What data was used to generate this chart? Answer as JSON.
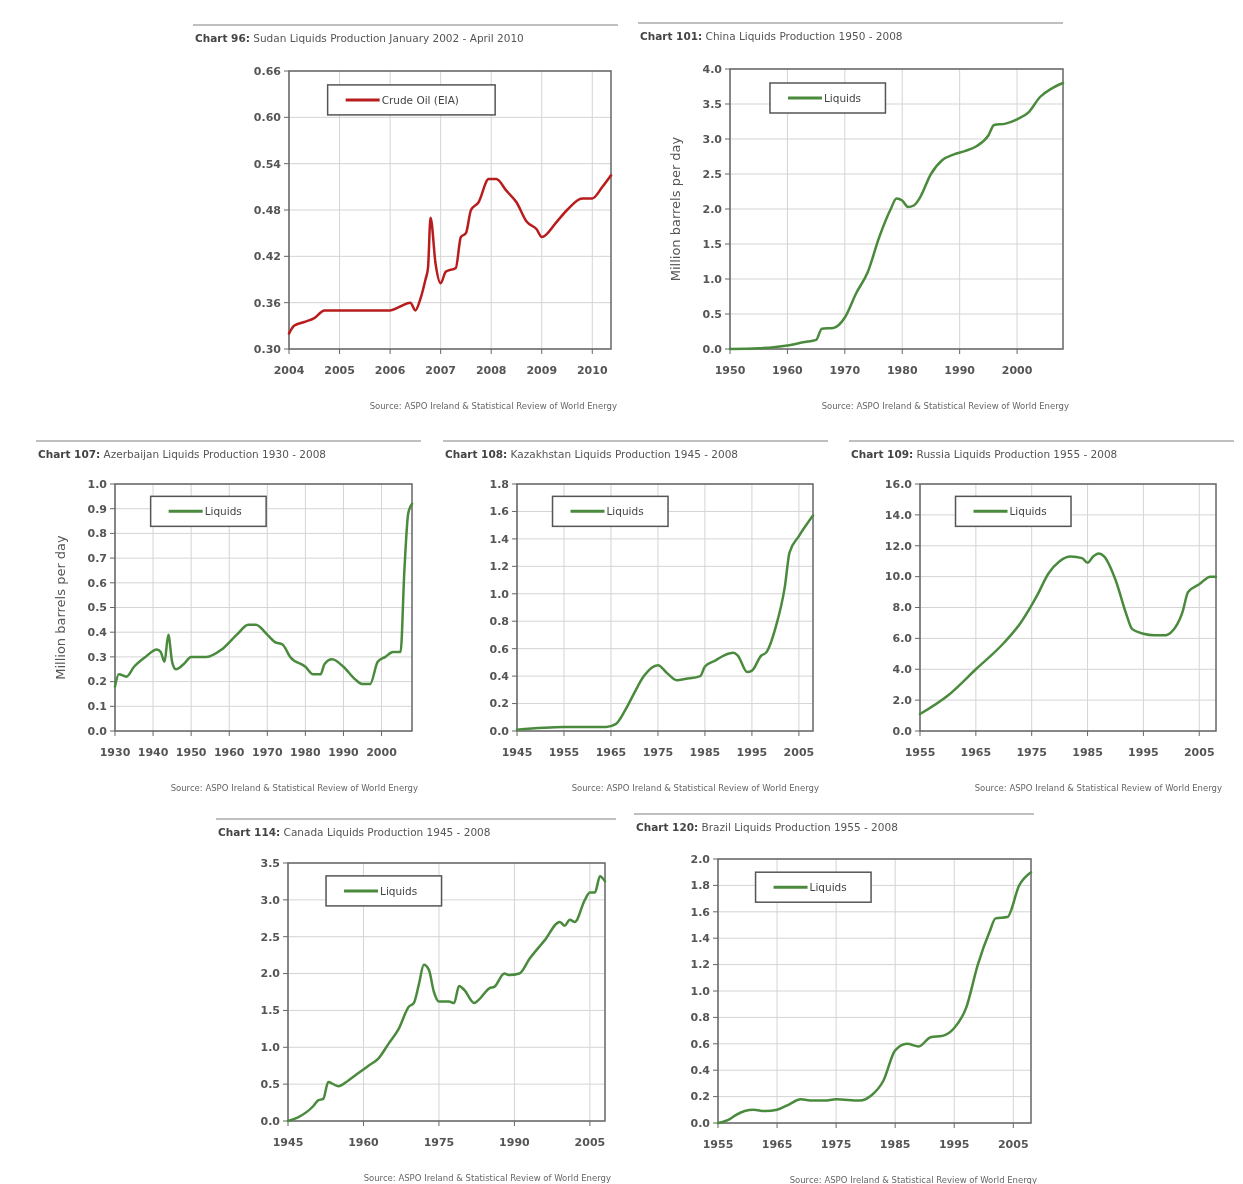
{
  "chart_data": [
    {
      "type": "line",
      "title": "Chart 96: Sudan Liquids Production January 2002 - April 2010",
      "xlim": [
        2004,
        2010.37
      ],
      "xticks": [
        2004,
        2005,
        2006,
        2007,
        2008,
        2009,
        2010
      ],
      "ylim": [
        0.3,
        0.66
      ],
      "yticks": [
        {
          "value": 0.3,
          "label": "0.30"
        },
        0.36,
        0.42,
        0.48,
        0.54,
        {
          "value": 0.6,
          "label": "0.60"
        },
        0.66
      ],
      "grid": true,
      "legend": "top left",
      "annotations": [
        "Source: ASPO Ireland & Statistical Review of World Energy"
      ],
      "series": [
        {
          "name": "Crude Oil (EIA)",
          "color": "#b81c1c",
          "x": [
            2004,
            2004.1,
            2004.3,
            2004.5,
            2004.7,
            2005,
            2006,
            2006.2,
            2006.4,
            2006.5,
            2006.6,
            2006.7,
            2006.75,
            2006.8,
            2006.9,
            2007,
            2007.1,
            2007.3,
            2007.4,
            2007.5,
            2007.6,
            2007.75,
            2007.95,
            2008.1,
            2008.3,
            2008.5,
            2008.7,
            2008.9,
            2009,
            2009.3,
            2009.5,
            2009.8,
            2010,
            2010.2,
            2010.37
          ],
          "values": [
            0.32,
            0.33,
            0.335,
            0.34,
            0.35,
            0.35,
            0.35,
            0.355,
            0.36,
            0.35,
            0.365,
            0.39,
            0.405,
            0.47,
            0.41,
            0.385,
            0.4,
            0.405,
            0.445,
            0.45,
            0.48,
            0.49,
            0.52,
            0.52,
            0.505,
            0.49,
            0.465,
            0.455,
            0.445,
            0.465,
            0.48,
            0.495,
            0.495,
            0.51,
            0.525
          ]
        }
      ]
    },
    {
      "type": "line",
      "title": "Chart 101: China Liquids Production 1950 - 2008",
      "ylabel": "Million barrels per day",
      "xlim": [
        1950,
        2008
      ],
      "xticks": [
        1950,
        1960,
        1970,
        1980,
        1990,
        2000
      ],
      "ylim": [
        0,
        4
      ],
      "yticks": [
        {
          "value": 0,
          "label": "0.0"
        },
        0.5,
        {
          "value": 1,
          "label": "1.0"
        },
        1.5,
        {
          "value": 2,
          "label": "2.0"
        },
        2.5,
        {
          "value": 3,
          "label": "3.0"
        },
        3.5,
        {
          "value": 4,
          "label": "4.0"
        }
      ],
      "grid": true,
      "legend": "top left",
      "annotations": [
        "Source: ASPO Ireland & Statistical Review of World Energy"
      ],
      "series": [
        {
          "name": "Liquids",
          "color": "#4a8a3c",
          "x": [
            1950,
            1955,
            1960,
            1963,
            1965,
            1966,
            1968,
            1970,
            1972,
            1974,
            1976,
            1978,
            1979,
            1980,
            1981,
            1982,
            1983,
            1985,
            1987,
            1989,
            1991,
            1993,
            1995,
            1996,
            1998,
            2000,
            2002,
            2004,
            2006,
            2008
          ],
          "values": [
            0,
            0.01,
            0.05,
            0.1,
            0.13,
            0.29,
            0.3,
            0.45,
            0.8,
            1.1,
            1.6,
            2.0,
            2.15,
            2.12,
            2.03,
            2.05,
            2.15,
            2.5,
            2.7,
            2.78,
            2.83,
            2.9,
            3.05,
            3.2,
            3.22,
            3.28,
            3.38,
            3.6,
            3.72,
            3.8
          ]
        }
      ]
    },
    {
      "type": "line",
      "title": "Chart 107: Azerbaijan Liquids Production 1930 - 2008",
      "ylabel": "Million barrels per day",
      "xlim": [
        1930,
        2008
      ],
      "xticks": [
        1930,
        1940,
        1950,
        1960,
        1970,
        1980,
        1990,
        2000
      ],
      "ylim": [
        0,
        1
      ],
      "yticks": [
        {
          "value": 0,
          "label": "0.0"
        },
        0.1,
        0.2,
        0.3,
        0.4,
        0.5,
        0.6,
        0.7,
        0.8,
        0.9,
        {
          "value": 1,
          "label": "1.0"
        }
      ],
      "grid": true,
      "legend": "top left",
      "annotations": [
        "Source: ASPO Ireland & Statistical Review of World Energy"
      ],
      "series": [
        {
          "name": "Liquids",
          "color": "#4a8a3c",
          "x": [
            1930,
            1931,
            1933,
            1935,
            1938,
            1941,
            1942,
            1943,
            1944,
            1945,
            1946,
            1948,
            1950,
            1954,
            1958,
            1962,
            1965,
            1967,
            1970,
            1972,
            1974,
            1976,
            1980,
            1982,
            1984,
            1985,
            1987,
            1990,
            1993,
            1995,
            1997,
            1999,
            2001,
            2003,
            2005,
            2006,
            2007,
            2008
          ],
          "values": [
            0.18,
            0.23,
            0.22,
            0.26,
            0.3,
            0.33,
            0.32,
            0.28,
            0.39,
            0.28,
            0.25,
            0.27,
            0.3,
            0.3,
            0.33,
            0.39,
            0.43,
            0.43,
            0.39,
            0.36,
            0.35,
            0.3,
            0.26,
            0.23,
            0.23,
            0.27,
            0.29,
            0.26,
            0.21,
            0.19,
            0.19,
            0.28,
            0.3,
            0.32,
            0.32,
            0.65,
            0.88,
            0.92
          ]
        }
      ]
    },
    {
      "type": "line",
      "title": "Chart 108: Kazakhstan Liquids Production 1945 - 2008",
      "xlim": [
        1945,
        2008
      ],
      "xticks": [
        1945,
        1955,
        1965,
        1975,
        1985,
        1995,
        2005
      ],
      "ylim": [
        0,
        1.8
      ],
      "yticks": [
        {
          "value": 0,
          "label": "0.0"
        },
        0.2,
        0.4,
        0.6,
        0.8,
        {
          "value": 1,
          "label": "1.0"
        },
        1.2,
        1.4,
        1.6,
        1.8
      ],
      "grid": true,
      "legend": "top left",
      "annotations": [
        "Source: ASPO Ireland & Statistical Review of World Energy"
      ],
      "series": [
        {
          "name": "Liquids",
          "color": "#4a8a3c",
          "x": [
            1945,
            1955,
            1964,
            1966,
            1968,
            1970,
            1972,
            1975,
            1977,
            1979,
            1981,
            1984,
            1985,
            1987,
            1989,
            1991,
            1992,
            1994,
            1995,
            1997,
            1998,
            2000,
            2002,
            2003,
            2005,
            2008
          ],
          "values": [
            0.01,
            0.03,
            0.03,
            0.05,
            0.15,
            0.28,
            0.4,
            0.48,
            0.42,
            0.37,
            0.38,
            0.4,
            0.47,
            0.51,
            0.55,
            0.57,
            0.55,
            0.43,
            0.44,
            0.55,
            0.57,
            0.75,
            1.05,
            1.3,
            1.42,
            1.57
          ]
        }
      ]
    },
    {
      "type": "line",
      "title": "Chart 109: Russia Liquids Production 1955 - 2008",
      "xlim": [
        1955,
        2008
      ],
      "xticks": [
        1955,
        1965,
        1975,
        1985,
        1995,
        2005
      ],
      "ylim": [
        0,
        16
      ],
      "yticks": [
        {
          "value": 0,
          "label": "0.0"
        },
        {
          "value": 2,
          "label": "2.0"
        },
        {
          "value": 4,
          "label": "4.0"
        },
        {
          "value": 6,
          "label": "6.0"
        },
        {
          "value": 8,
          "label": "8.0"
        },
        {
          "value": 10,
          "label": "10.0"
        },
        {
          "value": 12,
          "label": "12.0"
        },
        {
          "value": 14,
          "label": "14.0"
        },
        {
          "value": 16,
          "label": "16.0"
        }
      ],
      "grid": true,
      "legend": "top left",
      "annotations": [
        "Source: ASPO Ireland & Statistical Review of World Energy"
      ],
      "series": [
        {
          "name": "Liquids",
          "color": "#4a8a3c",
          "x": [
            1955,
            1960,
            1965,
            1970,
            1973,
            1976,
            1978,
            1980,
            1982,
            1984,
            1985,
            1986,
            1987,
            1988,
            1990,
            1992,
            1993,
            1995,
            1997,
            1999,
            2000,
            2002,
            2003,
            2005,
            2007,
            2008
          ],
          "values": [
            1.1,
            2.3,
            4.0,
            5.7,
            7.0,
            8.8,
            10.2,
            11.0,
            11.3,
            11.2,
            10.9,
            11.3,
            11.5,
            11.3,
            9.8,
            7.5,
            6.6,
            6.3,
            6.2,
            6.2,
            6.4,
            7.7,
            9.0,
            9.5,
            10.0,
            10.0
          ]
        }
      ]
    },
    {
      "type": "line",
      "title": "Chart 114: Canada Liquids Production 1945 - 2008",
      "xlim": [
        1945,
        2008
      ],
      "xticks": [
        1945,
        1960,
        1975,
        1990,
        2005
      ],
      "ylim": [
        0,
        3.5
      ],
      "yticks": [
        {
          "value": 0,
          "label": "0.0"
        },
        0.5,
        {
          "value": 1,
          "label": "1.0"
        },
        1.5,
        {
          "value": 2,
          "label": "2.0"
        },
        2.5,
        {
          "value": 3,
          "label": "3.0"
        },
        3.5
      ],
      "grid": true,
      "legend": "top left",
      "annotations": [
        "Source: ASPO Ireland & Statistical Review of World Energy"
      ],
      "series": [
        {
          "name": "Liquids",
          "color": "#4a8a3c",
          "x": [
            1945,
            1947,
            1950,
            1951,
            1952,
            1953,
            1954,
            1955,
            1957,
            1959,
            1961,
            1963,
            1965,
            1967,
            1969,
            1970,
            1971,
            1972,
            1973,
            1974,
            1975,
            1977,
            1978,
            1979,
            1980,
            1982,
            1983,
            1985,
            1986,
            1988,
            1989,
            1991,
            1993,
            1996,
            1999,
            2000,
            2001,
            2002,
            2004,
            2005,
            2006,
            2007,
            2008
          ],
          "values": [
            0,
            0.05,
            0.2,
            0.28,
            0.3,
            0.53,
            0.5,
            0.47,
            0.55,
            0.65,
            0.75,
            0.85,
            1.05,
            1.25,
            1.55,
            1.6,
            1.85,
            2.12,
            2.05,
            1.75,
            1.62,
            1.62,
            1.6,
            1.83,
            1.78,
            1.6,
            1.65,
            1.8,
            1.82,
            2.0,
            1.98,
            2.0,
            2.2,
            2.45,
            2.7,
            2.65,
            2.73,
            2.7,
            3.0,
            3.1,
            3.1,
            3.32,
            3.25
          ]
        }
      ]
    },
    {
      "type": "line",
      "title": "Chart 120: Brazil Liquids Production 1955 - 2008",
      "xlim": [
        1955,
        2008
      ],
      "xticks": [
        1955,
        1965,
        1975,
        1985,
        1995,
        2005
      ],
      "ylim": [
        0,
        2
      ],
      "yticks": [
        {
          "value": 0,
          "label": "0.0"
        },
        0.2,
        0.4,
        0.6,
        0.8,
        {
          "value": 1,
          "label": "1.0"
        },
        1.2,
        1.4,
        1.6,
        1.8,
        {
          "value": 2,
          "label": "2.0"
        }
      ],
      "grid": true,
      "legend": "top left",
      "annotations": [
        "Source: ASPO Ireland & Statistical Review of World Energy"
      ],
      "series": [
        {
          "name": "Liquids",
          "color": "#4a8a3c",
          "x": [
            1955,
            1957,
            1958,
            1961,
            1963,
            1965,
            1967,
            1969,
            1971,
            1973,
            1975,
            1979,
            1981,
            1983,
            1985,
            1987,
            1989,
            1991,
            1993,
            1995,
            1997,
            1999,
            2001,
            2002,
            2004,
            2006,
            2008
          ],
          "values": [
            0,
            0.03,
            0.06,
            0.1,
            0.09,
            0.1,
            0.14,
            0.18,
            0.17,
            0.17,
            0.18,
            0.17,
            0.21,
            0.32,
            0.55,
            0.6,
            0.58,
            0.65,
            0.66,
            0.72,
            0.87,
            1.2,
            1.45,
            1.55,
            1.56,
            1.8,
            1.9
          ]
        }
      ]
    }
  ]
}
